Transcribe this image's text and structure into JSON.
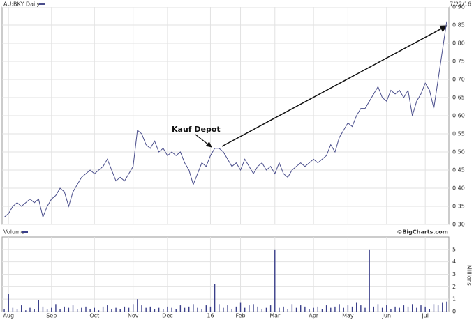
{
  "chart_data": [
    {
      "type": "line",
      "title": "AU:BKY Daily",
      "subtitle": "7/22/16",
      "annotation": "Kauf Depot",
      "color": "#4a4e8c",
      "grid": true,
      "values": [
        0.32,
        0.33,
        0.35,
        0.36,
        0.35,
        0.36,
        0.37,
        0.36,
        0.37,
        0.32,
        0.35,
        0.37,
        0.38,
        0.4,
        0.39,
        0.35,
        0.39,
        0.41,
        0.43,
        0.44,
        0.45,
        0.44,
        0.45,
        0.46,
        0.48,
        0.45,
        0.42,
        0.43,
        0.42,
        0.44,
        0.46,
        0.56,
        0.55,
        0.52,
        0.51,
        0.53,
        0.5,
        0.51,
        0.49,
        0.5,
        0.49,
        0.5,
        0.47,
        0.45,
        0.41,
        0.44,
        0.47,
        0.46,
        0.49,
        0.51,
        0.51,
        0.5,
        0.48,
        0.46,
        0.47,
        0.45,
        0.48,
        0.46,
        0.44,
        0.46,
        0.47,
        0.45,
        0.46,
        0.44,
        0.47,
        0.44,
        0.43,
        0.45,
        0.46,
        0.47,
        0.46,
        0.47,
        0.48,
        0.47,
        0.48,
        0.49,
        0.52,
        0.5,
        0.54,
        0.56,
        0.58,
        0.57,
        0.6,
        0.62,
        0.62,
        0.64,
        0.66,
        0.68,
        0.65,
        0.64,
        0.67,
        0.66,
        0.67,
        0.65,
        0.67,
        0.6,
        0.64,
        0.66,
        0.69,
        0.67,
        0.62,
        0.7,
        0.78,
        0.86
      ],
      "ylim": [
        0.3,
        0.9
      ],
      "yticks": [
        {
          "value": 0.3,
          "label": "0.30"
        },
        0.35,
        {
          "value": 0.4,
          "label": "0.40"
        },
        0.45,
        {
          "value": 0.5,
          "label": "0.50"
        },
        0.55,
        {
          "value": 0.6,
          "label": "0.60"
        },
        0.65,
        {
          "value": 0.7,
          "label": "0.70"
        },
        0.75,
        {
          "value": 0.8,
          "label": "0.80"
        },
        0.85,
        {
          "value": 0.9,
          "label": "0.90"
        }
      ]
    },
    {
      "type": "bar",
      "title": "Volume",
      "source": "©BigCharts.com",
      "ylabel": "Millions",
      "color": "#3a3f8a",
      "grid": true,
      "categories": [
        null,
        "Aug",
        null,
        null,
        null,
        null,
        null,
        null,
        null,
        null,
        null,
        "Sep",
        null,
        null,
        null,
        null,
        null,
        null,
        null,
        null,
        null,
        "Oct",
        null,
        null,
        null,
        null,
        null,
        null,
        null,
        null,
        "Nov",
        null,
        null,
        null,
        null,
        null,
        null,
        null,
        "Dec",
        null,
        null,
        null,
        null,
        null,
        null,
        null,
        null,
        null,
        "16",
        null,
        null,
        null,
        null,
        null,
        null,
        "Feb",
        null,
        null,
        null,
        null,
        null,
        null,
        null,
        "Mar",
        null,
        null,
        null,
        null,
        null,
        null,
        null,
        null,
        "Apr",
        null,
        null,
        null,
        null,
        null,
        null,
        null,
        "May",
        null,
        null,
        null,
        null,
        null,
        null,
        null,
        null,
        "Jun",
        null,
        null,
        null,
        null,
        null,
        null,
        null,
        null,
        "Jul",
        null,
        null,
        null,
        null,
        null
      ],
      "values": [
        0.2,
        1.4,
        0.3,
        0.2,
        0.5,
        0.1,
        0.3,
        0.2,
        0.9,
        0.4,
        0.2,
        0.3,
        0.6,
        0.2,
        0.4,
        0.3,
        0.5,
        0.2,
        0.3,
        0.4,
        0.2,
        0.3,
        0.1,
        0.4,
        0.5,
        0.2,
        0.3,
        0.2,
        0.4,
        0.3,
        0.6,
        1.0,
        0.5,
        0.3,
        0.4,
        0.2,
        0.3,
        0.2,
        0.4,
        0.3,
        0.2,
        0.5,
        0.3,
        0.4,
        0.6,
        0.3,
        0.2,
        0.5,
        0.4,
        2.2,
        0.6,
        0.3,
        0.5,
        0.2,
        0.4,
        0.7,
        0.3,
        0.5,
        0.6,
        0.4,
        0.2,
        0.3,
        0.5,
        5.0,
        0.3,
        0.4,
        0.2,
        0.6,
        0.3,
        0.5,
        0.4,
        0.2,
        0.3,
        0.4,
        0.2,
        0.5,
        0.3,
        0.4,
        0.6,
        0.3,
        0.5,
        0.4,
        0.7,
        0.5,
        0.3,
        5.0,
        0.4,
        0.6,
        0.3,
        0.5,
        0.2,
        0.4,
        0.3,
        0.5,
        0.4,
        0.6,
        0.3,
        0.5,
        0.4,
        0.2,
        0.6,
        0.5,
        0.7,
        0.8
      ],
      "ylim": [
        0,
        6
      ],
      "yticks": [
        0,
        1,
        2,
        3,
        4,
        5
      ]
    }
  ]
}
